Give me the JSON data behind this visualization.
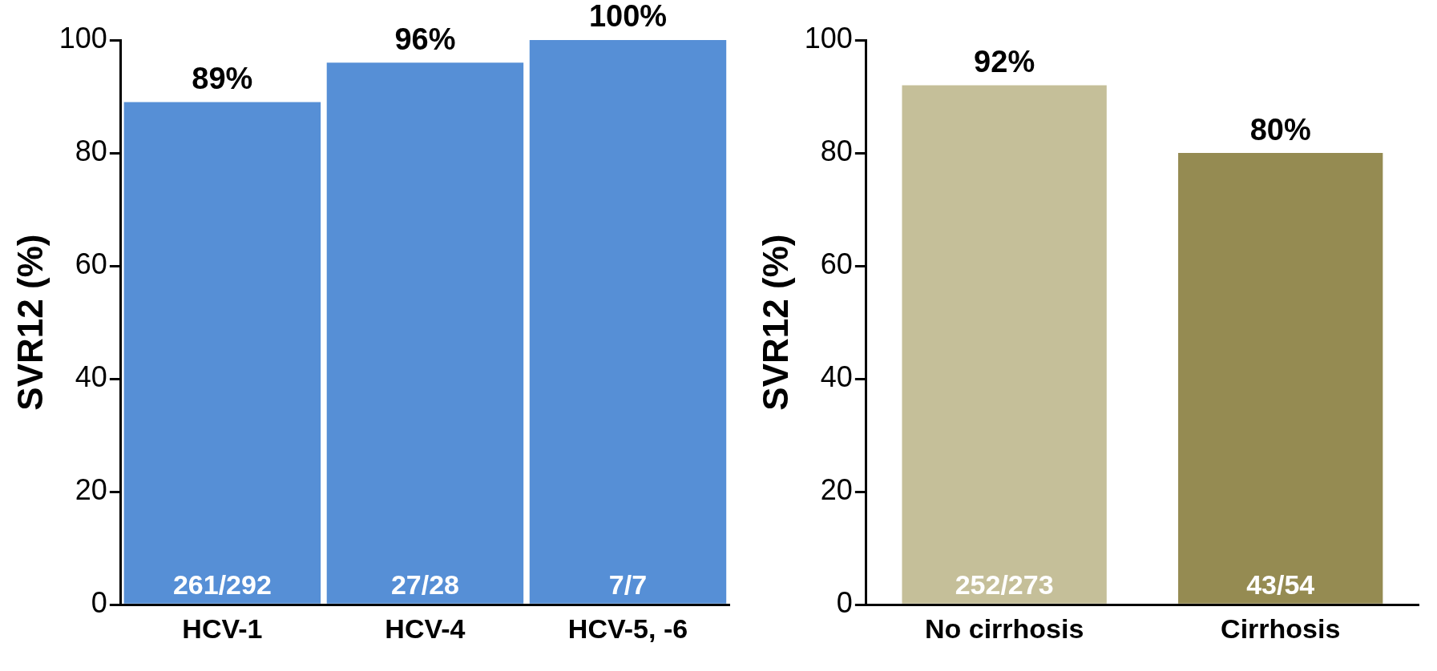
{
  "chart_data": [
    {
      "type": "bar",
      "ylabel": "SVR12 (%)",
      "categories": [
        "HCV-1",
        "HCV-4",
        "HCV-5, -6"
      ],
      "values": [
        89,
        96,
        100
      ],
      "color": "#568fd6",
      "value_labels": [
        "89%",
        "96%",
        "100%"
      ],
      "ylim": [
        0,
        100
      ],
      "yticks": [
        0,
        20,
        40,
        60,
        80,
        100
      ],
      "grid": false,
      "legend": false,
      "annotations": [
        {
          "text": "261/292",
          "x": "HCV-1",
          "y": 0
        },
        {
          "text": "27/28",
          "x": "HCV-4",
          "y": 0
        },
        {
          "text": "7/7",
          "x": "HCV-5, -6",
          "y": 0
        }
      ]
    },
    {
      "type": "bar",
      "ylabel": "SVR12 (%)",
      "categories": [
        "No cirrhosis",
        "Cirrhosis"
      ],
      "values": [
        92,
        80
      ],
      "colors": [
        "#c5bf99",
        "#958b52"
      ],
      "value_labels": [
        "92%",
        "80%"
      ],
      "ylim": [
        0,
        100
      ],
      "yticks": [
        0,
        20,
        40,
        60,
        80,
        100
      ],
      "grid": false,
      "legend": false,
      "annotations": [
        {
          "text": "252/273",
          "x": "No cirrhosis",
          "y": 0
        },
        {
          "text": "43/54",
          "x": "Cirrhosis",
          "y": 0
        }
      ]
    }
  ]
}
